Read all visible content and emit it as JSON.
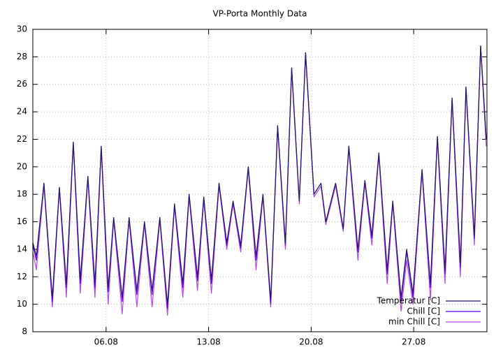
{
  "chart_data": {
    "type": "line",
    "title": "VP-Porta Monthly Data",
    "x": [
      1.0,
      1.24,
      1.76,
      2.33,
      2.81,
      3.29,
      3.76,
      4.24,
      4.76,
      5.24,
      5.67,
      6.14,
      6.52,
      7.1,
      7.57,
      8.1,
      8.62,
      9.14,
      9.67,
      10.19,
      10.67,
      11.24,
      11.67,
      12.24,
      12.67,
      13.19,
      13.71,
      14.24,
      14.67,
      15.19,
      15.71,
      16.24,
      16.71,
      17.24,
      17.71,
      18.24,
      18.67,
      19.19,
      19.62,
      20.19,
      20.67,
      21.0,
      21.67,
      22.19,
      22.57,
      23.19,
      23.67,
      24.14,
      24.62,
      25.19,
      25.57,
      26.14,
      26.52,
      26.95,
      27.57,
      28.14,
      28.62,
      29.14,
      29.62,
      30.19,
      30.57,
      31.14,
      31.57,
      31.95
    ],
    "series": [
      {
        "name": "Temperatur [C]",
        "color": "#241a6b",
        "values": [
          14.5,
          13.5,
          18.8,
          10.5,
          18.5,
          11.5,
          21.8,
          11.8,
          19.3,
          11.5,
          21.5,
          11.2,
          16.3,
          10.5,
          16.3,
          11.0,
          16.0,
          11.0,
          16.3,
          10.0,
          17.3,
          11.5,
          18.0,
          12.0,
          17.8,
          11.8,
          18.8,
          14.5,
          17.5,
          14.3,
          20.0,
          13.5,
          18.0,
          10.3,
          23.0,
          14.5,
          27.2,
          17.5,
          28.3,
          18.0,
          18.8,
          16.0,
          18.8,
          15.5,
          21.5,
          14.0,
          19.0,
          15.0,
          21.0,
          12.5,
          17.5,
          10.5,
          14.0,
          10.8,
          19.8,
          11.5,
          22.2,
          12.5,
          25.0,
          13.0,
          25.8,
          15.0,
          28.8,
          22.0
        ]
      },
      {
        "name": "Chill [C]",
        "color": "#6a00e0",
        "values": [
          14.3,
          13.2,
          18.8,
          10.2,
          18.5,
          11.2,
          21.8,
          11.5,
          19.3,
          11.2,
          21.5,
          10.9,
          16.3,
          10.2,
          16.3,
          10.7,
          16.0,
          10.7,
          16.3,
          9.7,
          17.3,
          11.2,
          18.0,
          11.7,
          17.8,
          11.5,
          18.8,
          14.3,
          17.5,
          14.1,
          20.0,
          13.2,
          18.0,
          10.0,
          23.0,
          14.3,
          27.2,
          17.5,
          28.3,
          18.0,
          18.8,
          16.0,
          18.8,
          15.5,
          21.5,
          13.8,
          19.0,
          14.8,
          21.0,
          12.2,
          17.5,
          10.2,
          13.8,
          10.5,
          19.8,
          11.2,
          22.2,
          12.2,
          25.0,
          12.7,
          25.8,
          14.8,
          28.8,
          22.0
        ]
      },
      {
        "name": "min Chill [C]",
        "color": "#b347f0",
        "values": [
          13.8,
          12.5,
          18.6,
          9.8,
          18.3,
          10.5,
          21.6,
          10.8,
          19.1,
          10.5,
          21.3,
          10.0,
          16.1,
          9.3,
          16.1,
          9.8,
          15.8,
          9.8,
          16.1,
          9.2,
          17.1,
          10.5,
          17.8,
          11.0,
          17.6,
          10.8,
          18.6,
          14.0,
          17.3,
          13.8,
          19.8,
          12.5,
          17.8,
          9.8,
          22.8,
          14.0,
          27.0,
          17.3,
          28.1,
          17.8,
          18.6,
          15.8,
          18.6,
          15.3,
          21.3,
          13.2,
          18.8,
          14.3,
          20.8,
          11.5,
          17.3,
          9.5,
          13.2,
          10.0,
          19.6,
          10.3,
          22.0,
          11.5,
          24.8,
          12.0,
          25.6,
          14.3,
          28.6,
          21.5
        ]
      }
    ],
    "xlim": [
      1,
      32
    ],
    "ylim": [
      8,
      30
    ],
    "xticks": [
      {
        "value": 6,
        "label": "06.08"
      },
      {
        "value": 13,
        "label": "13.08"
      },
      {
        "value": 20,
        "label": "20.08"
      },
      {
        "value": 27,
        "label": "27.08"
      }
    ],
    "yticks": [
      8,
      10,
      12,
      14,
      16,
      18,
      20,
      22,
      24,
      26,
      28,
      30
    ],
    "grid": true,
    "legend": "bottom-right"
  }
}
